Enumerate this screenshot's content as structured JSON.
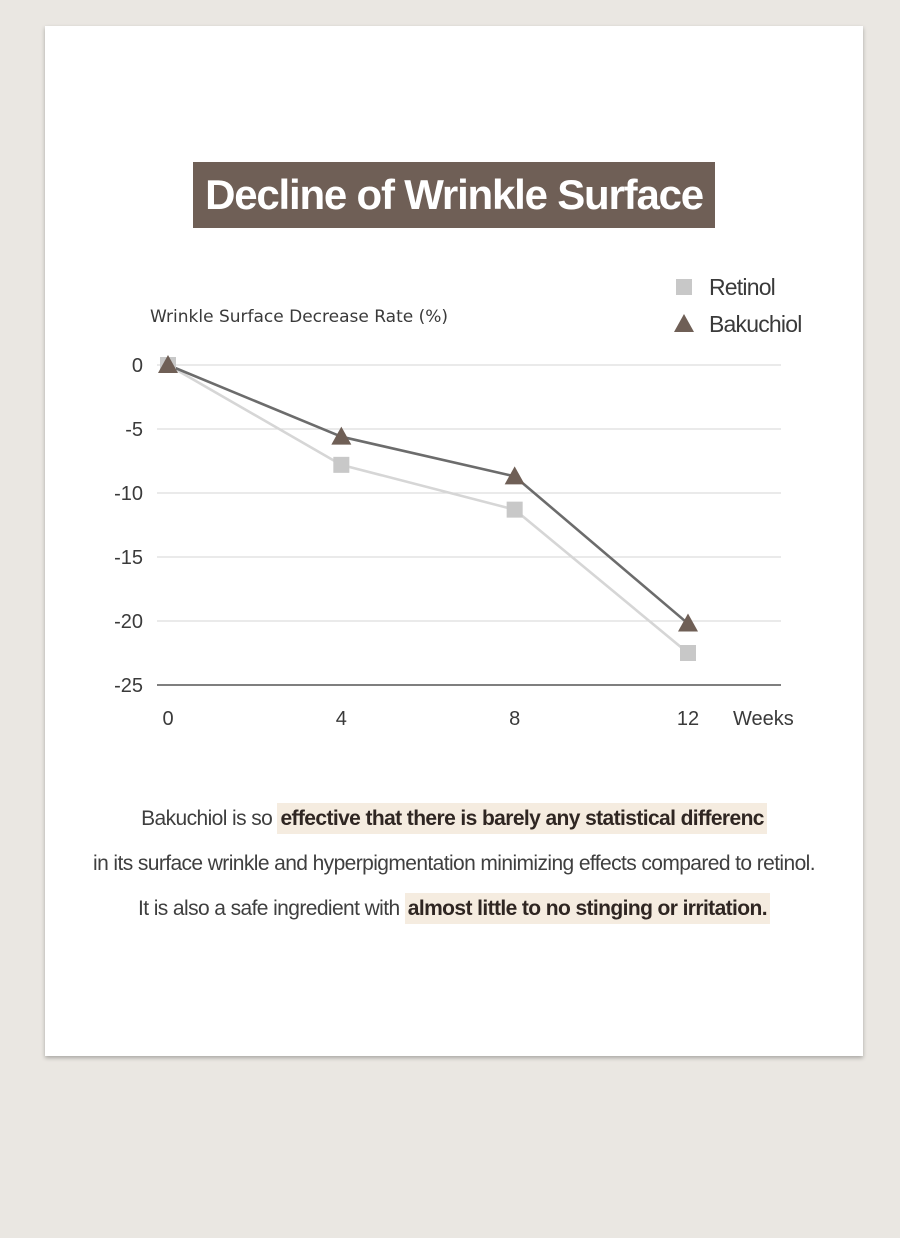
{
  "chart_data": {
    "type": "line",
    "title": "Decline of Wrinkle Surface",
    "ylabel": "Wrinkle Surface Decrease Rate (%)",
    "xlabel": "Weeks",
    "x": [
      0,
      4,
      8,
      12
    ],
    "x_tick_labels": [
      "0",
      "4",
      "8",
      "12"
    ],
    "y_ticks": [
      0,
      -5,
      -10,
      -15,
      -20,
      -25
    ],
    "y_tick_labels": [
      "0",
      "-5",
      "-10",
      "-15",
      "-20",
      "-25"
    ],
    "ylim": [
      -25,
      0
    ],
    "grid": true,
    "legend_position": "top-right",
    "series": [
      {
        "name": "Retinol",
        "values": [
          0,
          -7.8,
          -11.3,
          -22.5
        ],
        "marker": "square",
        "line_color": "#d6d6d6",
        "marker_color": "#c8c8c8"
      },
      {
        "name": "Bakuchiol",
        "values": [
          0,
          -5.6,
          -8.7,
          -20.2
        ],
        "marker": "triangle",
        "line_color": "#6c6c6c",
        "marker_color": "#6f5f56"
      }
    ]
  },
  "description": {
    "line1_plain": "Bakuchiol is so ",
    "line1_highlight": "effective that there is barely any statistical differenc",
    "line2": "in its surface wrinkle and hyperpigmentation minimizing effects compared to retinol.",
    "line3_plain": "It is also a safe ingredient with ",
    "line3_highlight": "almost little to no stinging or irritation."
  },
  "colors": {
    "page_background": "#eae7e2",
    "card_background": "#ffffff",
    "title_background": "#6f5f56",
    "highlight_background": "#f5ece0",
    "gridline": "#dddddd",
    "axis": "#555555"
  }
}
